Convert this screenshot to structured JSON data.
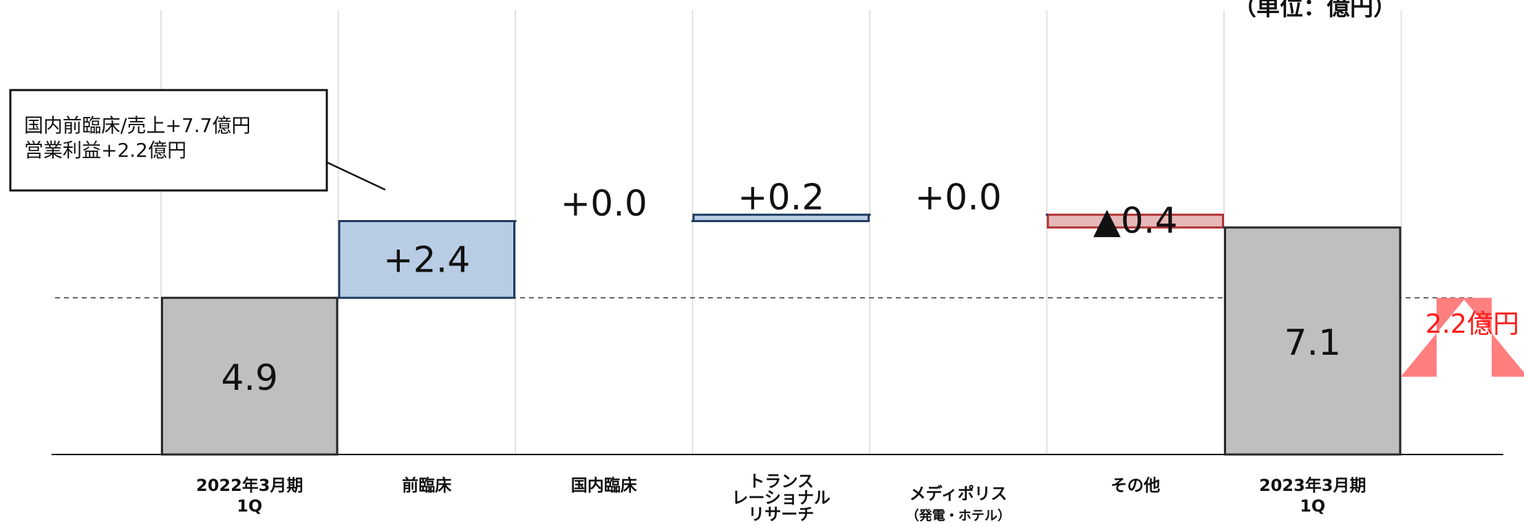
{
  "chart_data": {
    "type": "bar",
    "subtype": "waterfall",
    "unit_label": "（単位：億円）",
    "categories": [
      {
        "lines": [
          "2022年3月期",
          "1Q"
        ]
      },
      {
        "lines": [
          "前臨床"
        ]
      },
      {
        "lines": [
          "国内臨床"
        ]
      },
      {
        "lines": [
          "トランス",
          "レーショナル",
          "リサーチ"
        ]
      },
      {
        "lines": [
          "メディポリス"
        ],
        "sub": "（発電・ホテル）"
      },
      {
        "lines": [
          "その他"
        ]
      },
      {
        "lines": [
          "2023年3月期",
          "1Q"
        ]
      }
    ],
    "bars": [
      {
        "kind": "total",
        "value": 4.9,
        "label": "4.9"
      },
      {
        "kind": "increase",
        "value": 2.4,
        "label": "+2.4"
      },
      {
        "kind": "increase",
        "value": 0.0,
        "label": "+0.0"
      },
      {
        "kind": "increase",
        "value": 0.2,
        "label": "+0.2"
      },
      {
        "kind": "increase",
        "value": 0.0,
        "label": "+0.0"
      },
      {
        "kind": "decrease",
        "value": -0.4,
        "label": "▲0.4"
      },
      {
        "kind": "total",
        "value": 7.1,
        "label": "7.1"
      }
    ],
    "ylim": [
      0,
      8.2
    ],
    "reference_line": 4.9,
    "annotation": {
      "lines": [
        "国内前臨床/売上+7.7億円",
        "営業利益+2.2億円"
      ],
      "target_category_index": 1
    },
    "delta_arrow": {
      "label": "2.2億円"
    },
    "colors": {
      "total": "#bfbfbf",
      "increase": "#b8cce4",
      "decrease": "#e6b9b8",
      "total_border": "#262626",
      "increase_border": "#1f3a5f",
      "decrease_border": "#b03030",
      "arrow": "#ff7f7f",
      "delta_text": "#ff1a1a"
    }
  }
}
